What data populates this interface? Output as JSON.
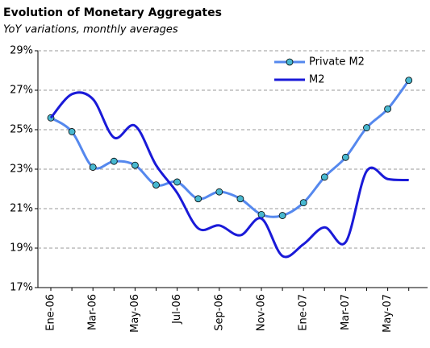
{
  "chart_data": {
    "type": "line",
    "title": "Evolution of Monetary Aggregates",
    "subtitle": "YoY variations, monthly averages",
    "categories": [
      "Ene-06",
      null,
      "Mar-06",
      null,
      "May-06",
      null,
      "Jul-06",
      null,
      "Sep-06",
      null,
      "Nov-06",
      null,
      "Ene-07",
      null,
      "Mar-07",
      null,
      "May-07",
      null
    ],
    "series": [
      {
        "name": "Private M2",
        "color": "#5588ee",
        "marker": "#48b8d0",
        "values": [
          25.6,
          24.9,
          23.1,
          23.4,
          23.2,
          22.2,
          22.35,
          21.5,
          21.85,
          21.5,
          20.7,
          20.65,
          21.3,
          22.6,
          23.6,
          25.1,
          26.05,
          27.5
        ]
      },
      {
        "name": "M2",
        "color": "#1a1ad8",
        "values": [
          25.6,
          26.8,
          26.55,
          24.6,
          25.2,
          23.2,
          21.8,
          20.0,
          20.15,
          19.65,
          20.5,
          18.6,
          19.2,
          20.05,
          19.3,
          22.9,
          22.5,
          22.45
        ]
      }
    ],
    "ylim": [
      17,
      29
    ],
    "yticks": [
      {
        "value": 17,
        "label": "17%"
      },
      {
        "value": 19,
        "label": "19%"
      },
      {
        "value": 21,
        "label": "21%"
      },
      {
        "value": 23,
        "label": "23%"
      },
      {
        "value": 25,
        "label": "25%"
      },
      {
        "value": 27,
        "label": "27%"
      },
      {
        "value": 29,
        "label": "29%"
      }
    ],
    "grid": true,
    "legend": "top-right"
  }
}
